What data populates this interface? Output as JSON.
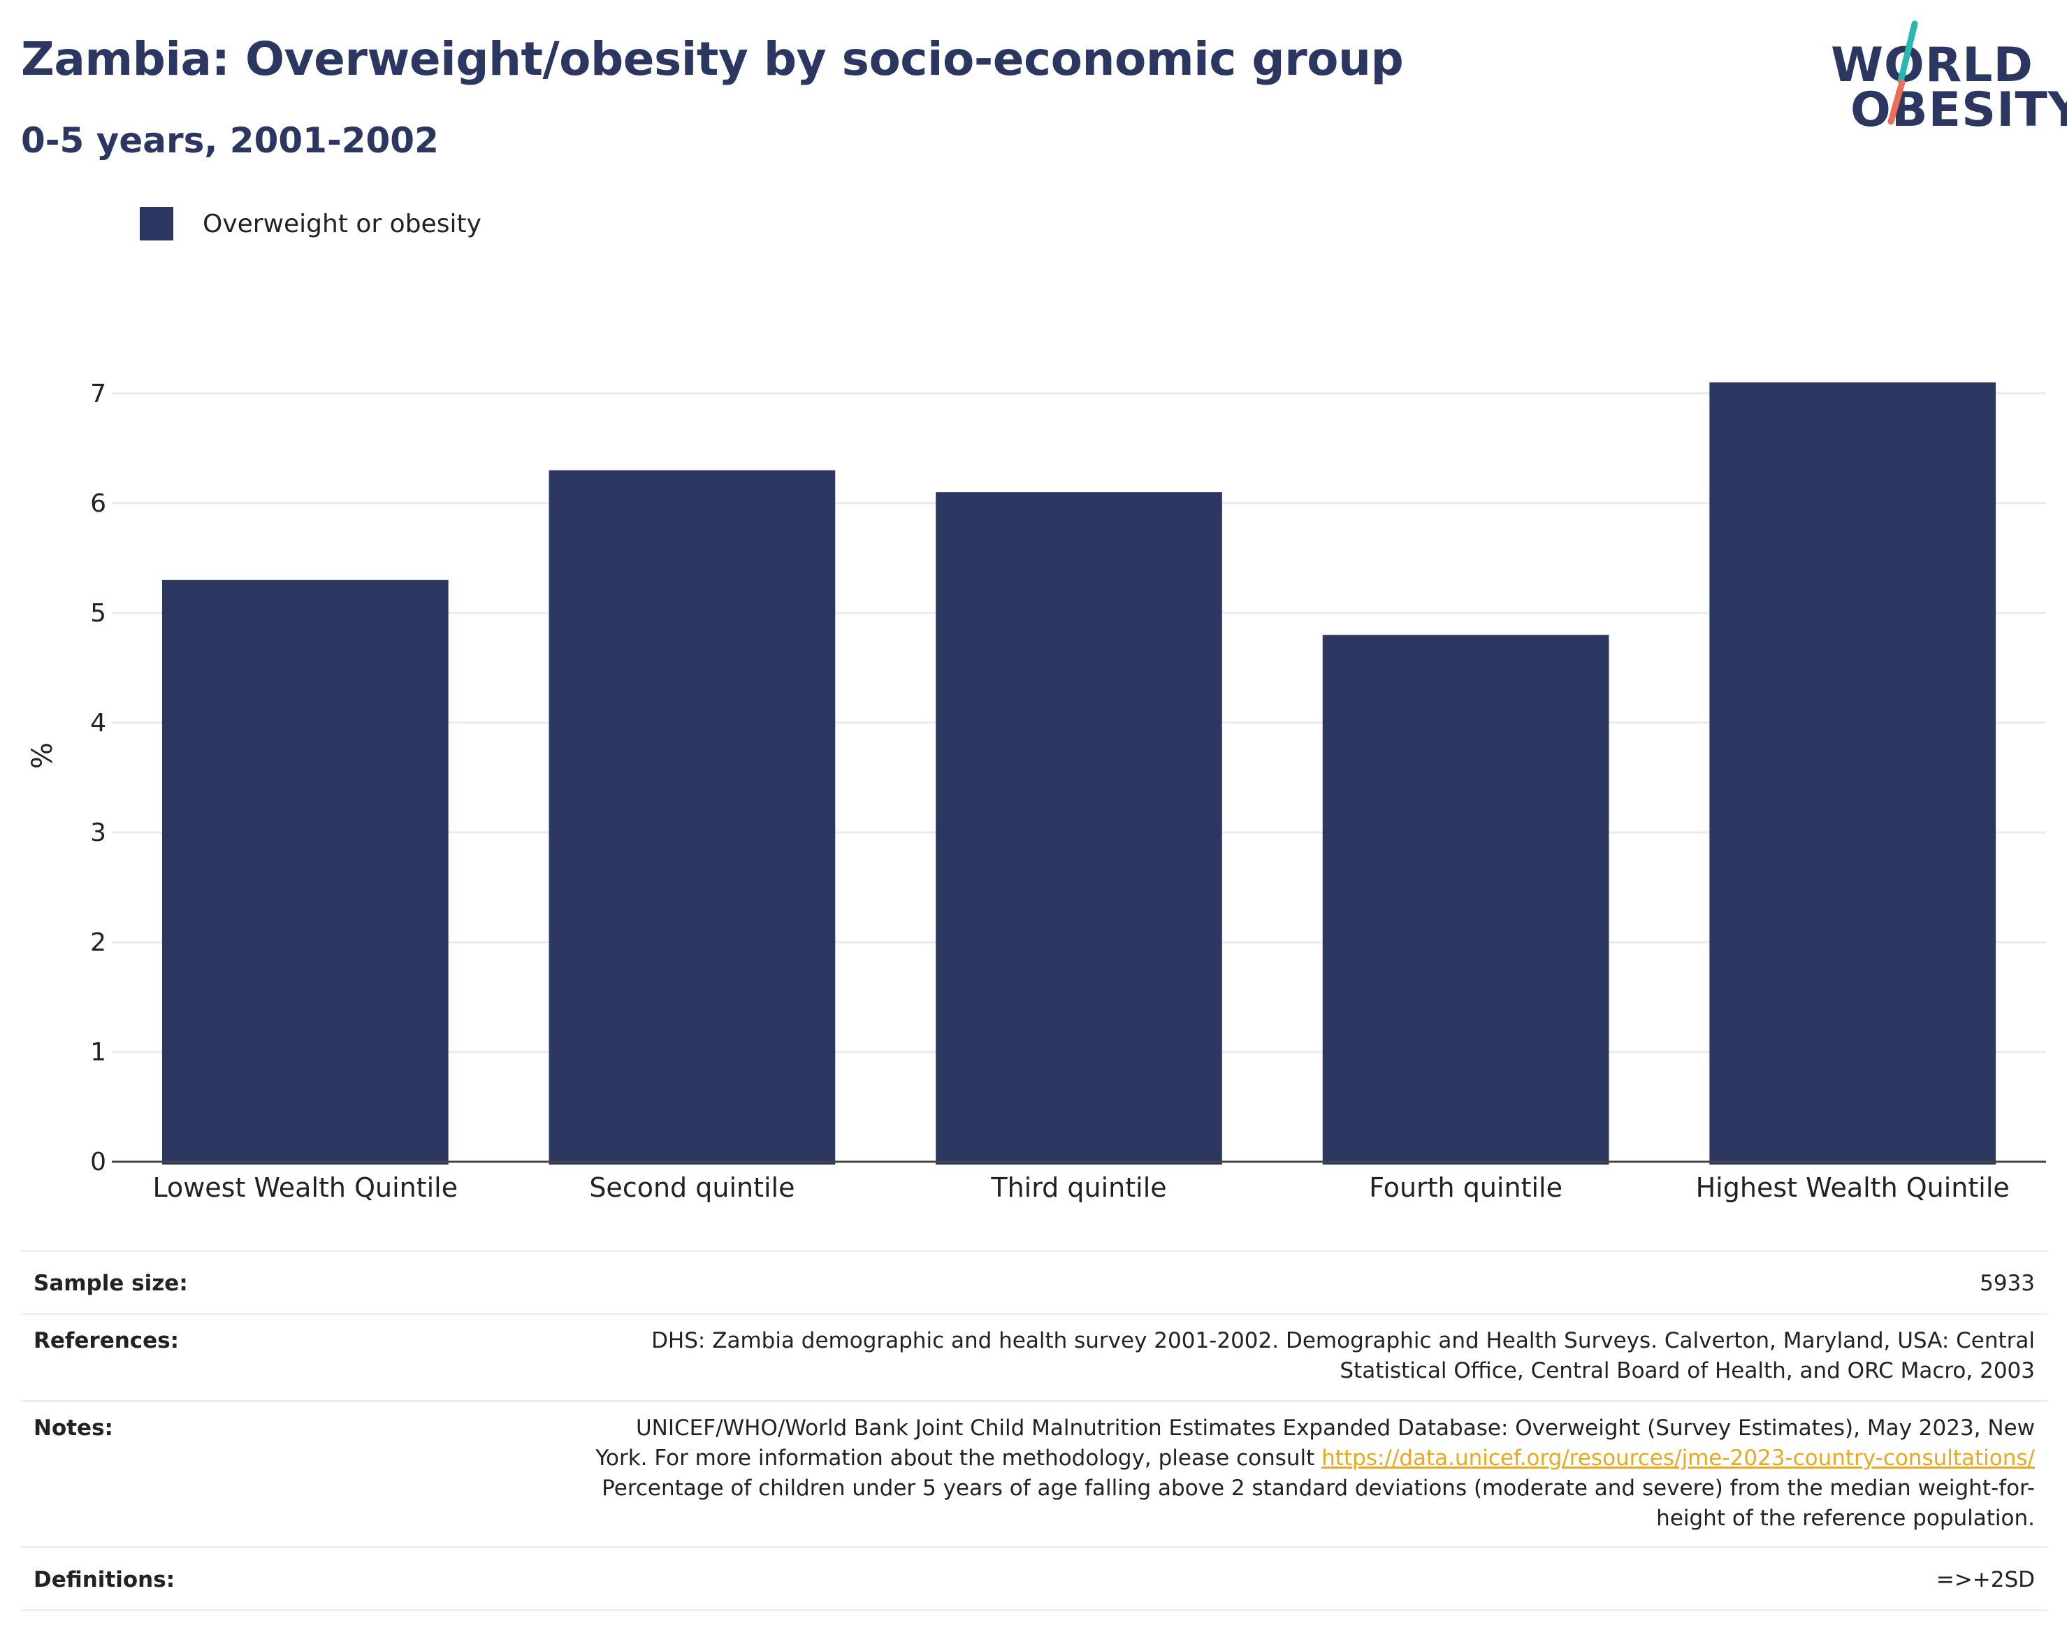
{
  "header": {
    "title": "Zambia: Overweight/obesity by socio-economic group",
    "subtitle": "0-5 years, 2001-2002"
  },
  "logo": {
    "line1": "WORLD",
    "line2": "OBESITY",
    "accent_colors": [
      "#2ab7b0",
      "#ec6f5a"
    ]
  },
  "legend": {
    "items": [
      {
        "label": "Overweight or obesity",
        "color": "#2b3661"
      }
    ]
  },
  "chart_data": {
    "type": "bar",
    "categories": [
      "Lowest Wealth Quintile",
      "Second quintile",
      "Third quintile",
      "Fourth quintile",
      "Highest Wealth Quintile"
    ],
    "series": [
      {
        "name": "Overweight or obesity",
        "values": [
          5.3,
          6.3,
          6.1,
          4.8,
          7.1
        ],
        "color": "#2b3661"
      }
    ],
    "ylabel": "%",
    "xlabel": "",
    "ylim": [
      0,
      7.4
    ],
    "yticks": [
      0,
      1,
      2,
      3,
      4,
      5,
      6,
      7
    ],
    "grid": true,
    "legend_position": "top-left"
  },
  "meta": {
    "sample_size_label": "Sample size:",
    "sample_size_value": "5933",
    "references_label": "References:",
    "references_line1": "DHS: Zambia demographic and health survey 2001-2002. Demographic and Health Surveys. Calverton, Maryland, USA: Central",
    "references_line2": "Statistical Office, Central Board of Health, and ORC Macro, 2003",
    "notes_label": "Notes:",
    "notes_line1": "UNICEF/WHO/World Bank Joint Child Malnutrition Estimates Expanded Database: Overweight (Survey Estimates), May 2023, New",
    "notes_line2_prefix": "York. For more information about the methodology, please consult ",
    "notes_link": "https://data.unicef.org/resources/jme-2023-country-consultations/",
    "notes_line3": "Percentage of children under 5 years of age falling above 2 standard deviations (moderate and severe) from the median weight-for-",
    "notes_line4": "height of the reference population.",
    "definitions_label": "Definitions:",
    "definitions_value": "=>+2SD"
  }
}
